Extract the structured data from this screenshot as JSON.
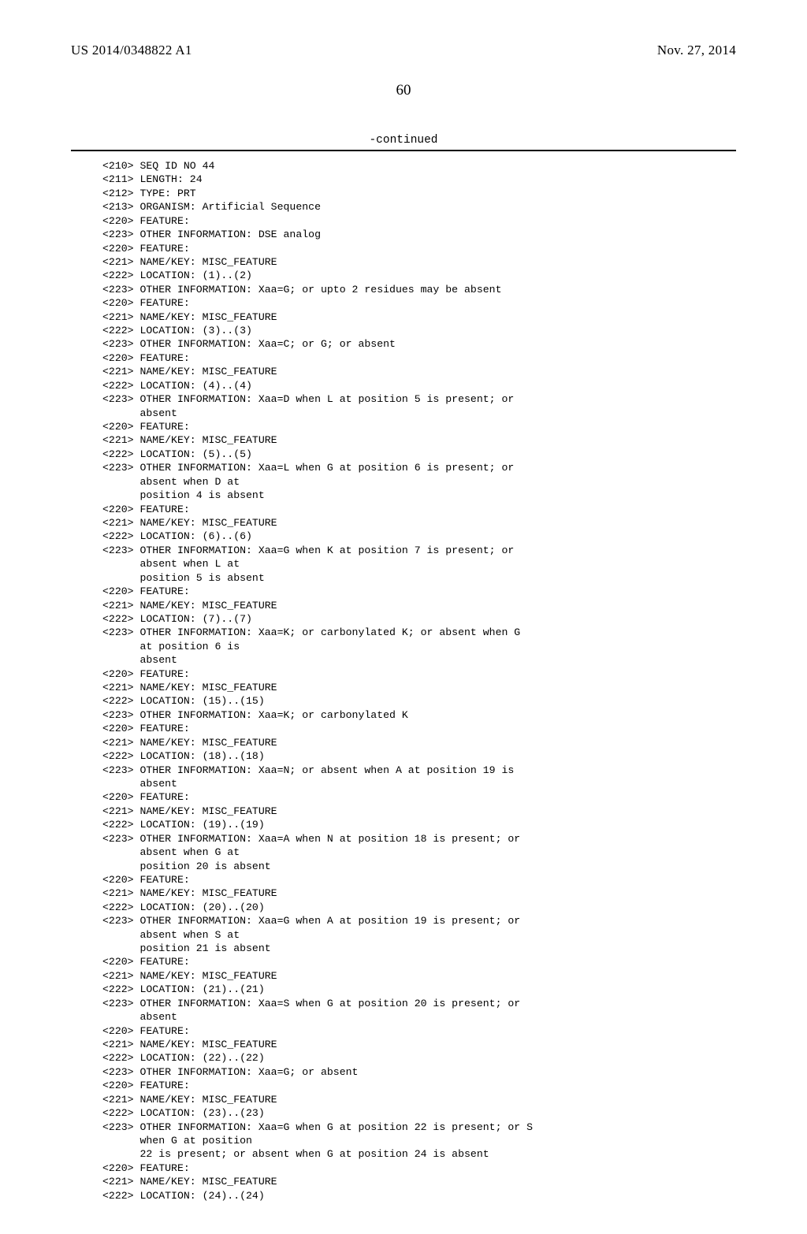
{
  "header": {
    "pubnum": "US 2014/0348822 A1",
    "pubdate": "Nov. 27, 2014",
    "pagenum": "60",
    "continued": "-continued"
  },
  "lines": [
    "<210> SEQ ID NO 44",
    "<211> LENGTH: 24",
    "<212> TYPE: PRT",
    "<213> ORGANISM: Artificial Sequence",
    "<220> FEATURE:",
    "<223> OTHER INFORMATION: DSE analog",
    "<220> FEATURE:",
    "<221> NAME/KEY: MISC_FEATURE",
    "<222> LOCATION: (1)..(2)",
    "<223> OTHER INFORMATION: Xaa=G; or upto 2 residues may be absent",
    "<220> FEATURE:",
    "<221> NAME/KEY: MISC_FEATURE",
    "<222> LOCATION: (3)..(3)",
    "<223> OTHER INFORMATION: Xaa=C; or G; or absent",
    "<220> FEATURE:",
    "<221> NAME/KEY: MISC_FEATURE",
    "<222> LOCATION: (4)..(4)",
    "<223> OTHER INFORMATION: Xaa=D when L at position 5 is present; or",
    "      absent",
    "<220> FEATURE:",
    "<221> NAME/KEY: MISC_FEATURE",
    "<222> LOCATION: (5)..(5)",
    "<223> OTHER INFORMATION: Xaa=L when G at position 6 is present; or",
    "      absent when D at",
    "      position 4 is absent",
    "<220> FEATURE:",
    "<221> NAME/KEY: MISC_FEATURE",
    "<222> LOCATION: (6)..(6)",
    "<223> OTHER INFORMATION: Xaa=G when K at position 7 is present; or",
    "      absent when L at",
    "      position 5 is absent",
    "<220> FEATURE:",
    "<221> NAME/KEY: MISC_FEATURE",
    "<222> LOCATION: (7)..(7)",
    "<223> OTHER INFORMATION: Xaa=K; or carbonylated K; or absent when G",
    "      at position 6 is",
    "      absent",
    "<220> FEATURE:",
    "<221> NAME/KEY: MISC_FEATURE",
    "<222> LOCATION: (15)..(15)",
    "<223> OTHER INFORMATION: Xaa=K; or carbonylated K",
    "<220> FEATURE:",
    "<221> NAME/KEY: MISC_FEATURE",
    "<222> LOCATION: (18)..(18)",
    "<223> OTHER INFORMATION: Xaa=N; or absent when A at position 19 is",
    "      absent",
    "<220> FEATURE:",
    "<221> NAME/KEY: MISC_FEATURE",
    "<222> LOCATION: (19)..(19)",
    "<223> OTHER INFORMATION: Xaa=A when N at position 18 is present; or",
    "      absent when G at",
    "      position 20 is absent",
    "<220> FEATURE:",
    "<221> NAME/KEY: MISC_FEATURE",
    "<222> LOCATION: (20)..(20)",
    "<223> OTHER INFORMATION: Xaa=G when A at position 19 is present; or",
    "      absent when S at",
    "      position 21 is absent",
    "<220> FEATURE:",
    "<221> NAME/KEY: MISC_FEATURE",
    "<222> LOCATION: (21)..(21)",
    "<223> OTHER INFORMATION: Xaa=S when G at position 20 is present; or",
    "      absent",
    "<220> FEATURE:",
    "<221> NAME/KEY: MISC_FEATURE",
    "<222> LOCATION: (22)..(22)",
    "<223> OTHER INFORMATION: Xaa=G; or absent",
    "<220> FEATURE:",
    "<221> NAME/KEY: MISC_FEATURE",
    "<222> LOCATION: (23)..(23)",
    "<223> OTHER INFORMATION: Xaa=G when G at position 22 is present; or S",
    "      when G at position",
    "      22 is present; or absent when G at position 24 is absent",
    "<220> FEATURE:",
    "<221> NAME/KEY: MISC_FEATURE",
    "<222> LOCATION: (24)..(24)"
  ]
}
